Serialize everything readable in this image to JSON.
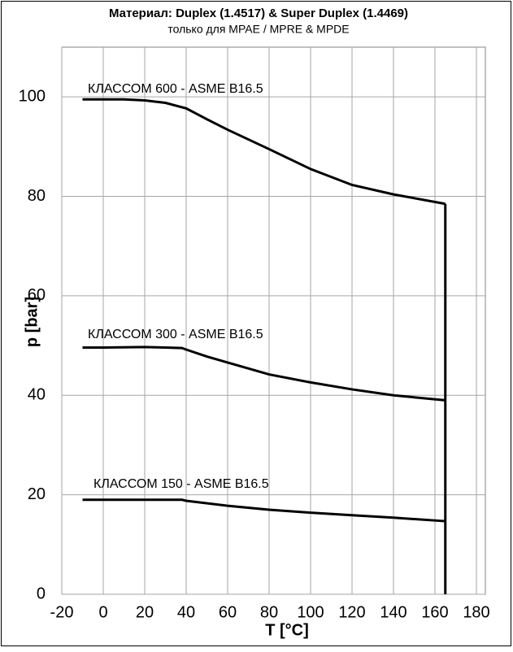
{
  "chart_data": {
    "type": "line",
    "title": "Материал: Duplex (1.4517) & Super Duplex (1.4469)",
    "subtitle": "только для MPAE / MPRE & MPDE",
    "x_label": "T [°C]",
    "y_label": "p [bar]",
    "xlim": [
      -20,
      180
    ],
    "xticks": [
      -20,
      0,
      20,
      40,
      60,
      80,
      100,
      120,
      140,
      160,
      180
    ],
    "ylim": [
      0,
      110
    ],
    "yticks": [
      0,
      20,
      40,
      60,
      80,
      100
    ],
    "grid": true,
    "annotations": [
      "КЛАССОМ 600 -  ASME B16.5",
      "КЛАССОМ 300 -  ASME B16.5",
      "КЛАССОМ  150 - ASME B16.5"
    ],
    "series": [
      {
        "color": "#000000",
        "x": [
          -10,
          0,
          10,
          20,
          30,
          40,
          50,
          60,
          80,
          100,
          120,
          140,
          165
        ],
        "values": [
          99.5,
          99.5,
          99.5,
          99.3,
          98.8,
          97.7,
          95.5,
          93.4,
          89.5,
          85.5,
          82.3,
          80.4,
          78.5
        ]
      },
      {
        "color": "#000000",
        "x": [
          -10,
          0,
          20,
          30,
          38,
          40,
          50,
          60,
          80,
          100,
          120,
          140,
          165
        ],
        "values": [
          49.6,
          49.6,
          49.7,
          49.6,
          49.5,
          49.2,
          47.8,
          46.6,
          44.2,
          42.6,
          41.2,
          40,
          39
        ]
      },
      {
        "color": "#000000",
        "x": [
          -10,
          0,
          20,
          38,
          40,
          60,
          80,
          100,
          120,
          140,
          165
        ],
        "values": [
          19,
          19,
          19,
          19,
          18.8,
          17.8,
          17,
          16.4,
          15.9,
          15.4,
          14.7
        ]
      },
      {
        "color": "#000000",
        "x": [
          165,
          165
        ],
        "values": [
          78.5,
          0
        ]
      }
    ]
  }
}
